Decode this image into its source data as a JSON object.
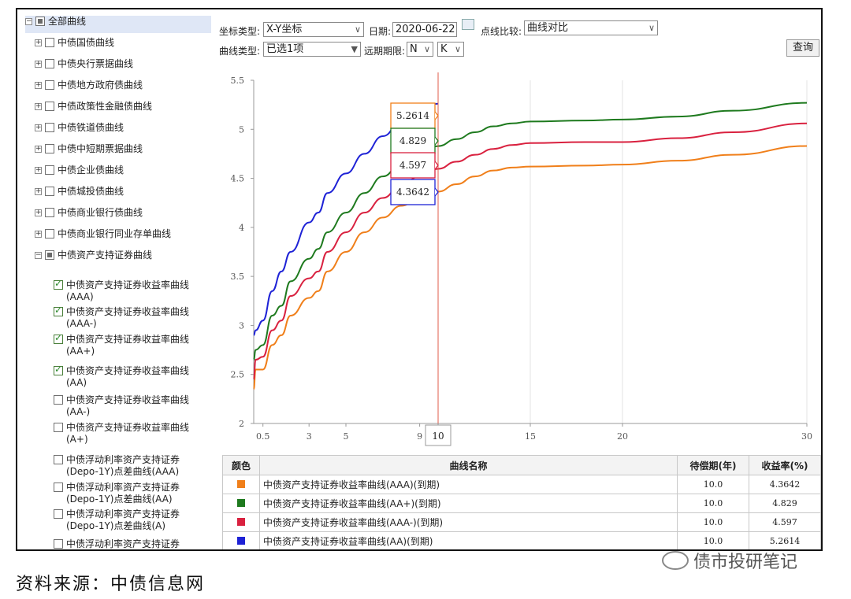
{
  "tree": {
    "root": "全部曲线",
    "groups": [
      "中债国债曲线",
      "中债央行票据曲线",
      "中债地方政府债曲线",
      "中债政策性金融债曲线",
      "中债铁道债曲线",
      "中债中短期票据曲线",
      "中债企业债曲线",
      "中债城投债曲线",
      "中债商业银行债曲线",
      "中债商业银行同业存单曲线",
      "中债资产支持证券曲线"
    ],
    "leaves": [
      {
        "label": "中债资产支持证券收益率曲线(AAA)",
        "checked": true
      },
      {
        "label": "中债资产支持证券收益率曲线(AAA-)",
        "checked": true
      },
      {
        "label": "中债资产支持证券收益率曲线(AA+)",
        "checked": true
      },
      {
        "label": "中债资产支持证券收益率曲线(AA)",
        "checked": true
      },
      {
        "label": "中债资产支持证券收益率曲线(AA-)",
        "checked": false
      },
      {
        "label": "中债资产支持证券收益率曲线(A+)",
        "checked": false
      },
      {
        "label": "中债浮动利率资产支持证券(Depo-1Y)点差曲线(AAA)",
        "checked": false
      },
      {
        "label": "中债浮动利率资产支持证券(Depo-1Y)点差曲线(AA)",
        "checked": false
      },
      {
        "label": "中债浮动利率资产支持证券(Depo-1Y)点差曲线(A)",
        "checked": false
      },
      {
        "label": "中债浮动利率资产支持证券",
        "checked": false
      }
    ]
  },
  "controls": {
    "coord_label": "坐标类型:",
    "coord_value": "X-Y坐标",
    "date_label": "日期:",
    "date_value": "2020-06-22",
    "compare_label": "点线比较:",
    "compare_value": "曲线对比",
    "curve_type_label": "曲线类型:",
    "curve_type_value": "已选1项",
    "far_label": "远期期限:",
    "far_n": "N",
    "far_k": "K",
    "query_button": "查询"
  },
  "chart_data": {
    "type": "line",
    "x_ticks": [
      "0.5",
      "3",
      "5",
      "9",
      "10",
      "15",
      "20",
      "30"
    ],
    "y_ticks": [
      "2",
      "2.5",
      "3",
      "3.5",
      "4",
      "4.5",
      "5",
      "5.5"
    ],
    "ylim": [
      2,
      5.5
    ],
    "crosshair_x": 10,
    "series": [
      {
        "name": "中债资产支持证券收益率曲线(AAA)(到期)",
        "color": "#f07f1a",
        "points": [
          [
            0,
            2.35
          ],
          [
            0.1,
            2.55
          ],
          [
            0.5,
            2.55
          ],
          [
            1,
            2.8
          ],
          [
            1.5,
            2.9
          ],
          [
            2,
            3.1
          ],
          [
            3,
            3.28
          ],
          [
            3.5,
            3.35
          ],
          [
            4,
            3.55
          ],
          [
            5,
            3.75
          ],
          [
            6,
            3.95
          ],
          [
            7,
            4.1
          ],
          [
            8,
            4.22
          ],
          [
            9,
            4.3
          ],
          [
            10,
            4.3642
          ],
          [
            11,
            4.44
          ],
          [
            12,
            4.52
          ],
          [
            13,
            4.58
          ],
          [
            14,
            4.61
          ],
          [
            15,
            4.62
          ],
          [
            18,
            4.63
          ],
          [
            20,
            4.64
          ],
          [
            23,
            4.68
          ],
          [
            26,
            4.74
          ],
          [
            30,
            4.83
          ]
        ]
      },
      {
        "name": "中债资产支持证券收益率曲线(AA+)(到期)",
        "color": "#1e7a1e",
        "points": [
          [
            0,
            2.65
          ],
          [
            0.1,
            2.75
          ],
          [
            0.5,
            2.8
          ],
          [
            1,
            3.1
          ],
          [
            1.5,
            3.2
          ],
          [
            2,
            3.45
          ],
          [
            3,
            3.68
          ],
          [
            3.5,
            3.78
          ],
          [
            4,
            3.95
          ],
          [
            5,
            4.15
          ],
          [
            6,
            4.35
          ],
          [
            7,
            4.52
          ],
          [
            8,
            4.65
          ],
          [
            9,
            4.76
          ],
          [
            10,
            4.829
          ],
          [
            11,
            4.9
          ],
          [
            12,
            4.97
          ],
          [
            13,
            5.03
          ],
          [
            14,
            5.06
          ],
          [
            15,
            5.08
          ],
          [
            18,
            5.09
          ],
          [
            20,
            5.1
          ],
          [
            23,
            5.13
          ],
          [
            26,
            5.19
          ],
          [
            30,
            5.27
          ]
        ]
      },
      {
        "name": "中债资产支持证券收益率曲线(AAA-)(到期)",
        "color": "#d9213f",
        "points": [
          [
            0,
            2.45
          ],
          [
            0.1,
            2.65
          ],
          [
            0.5,
            2.68
          ],
          [
            1,
            2.95
          ],
          [
            1.5,
            3.05
          ],
          [
            2,
            3.3
          ],
          [
            3,
            3.48
          ],
          [
            3.5,
            3.55
          ],
          [
            4,
            3.75
          ],
          [
            5,
            3.95
          ],
          [
            6,
            4.15
          ],
          [
            7,
            4.3
          ],
          [
            8,
            4.43
          ],
          [
            9,
            4.52
          ],
          [
            10,
            4.597
          ],
          [
            11,
            4.67
          ],
          [
            12,
            4.74
          ],
          [
            13,
            4.8
          ],
          [
            14,
            4.84
          ],
          [
            15,
            4.86
          ],
          [
            18,
            4.87
          ],
          [
            20,
            4.87
          ],
          [
            23,
            4.91
          ],
          [
            26,
            4.97
          ],
          [
            30,
            5.06
          ]
        ]
      },
      {
        "name": "中债资产支持证券收益率曲线(AA)(到期)",
        "color": "#1e22d6",
        "points": [
          [
            0,
            2.9
          ],
          [
            0.1,
            2.95
          ],
          [
            0.5,
            3.05
          ],
          [
            1,
            3.35
          ],
          [
            1.5,
            3.55
          ],
          [
            2,
            3.75
          ],
          [
            3,
            4.05
          ],
          [
            3.5,
            4.15
          ],
          [
            4,
            4.35
          ],
          [
            5,
            4.55
          ],
          [
            6,
            4.75
          ],
          [
            7,
            4.93
          ],
          [
            8,
            5.08
          ],
          [
            9,
            5.2
          ],
          [
            10,
            5.2614
          ]
        ]
      }
    ],
    "callouts": [
      "5.2614",
      "4.829",
      "4.597",
      "4.3642"
    ],
    "crosshair_label": "10"
  },
  "table": {
    "headers": [
      "颜色",
      "曲线名称",
      "待偿期(年)",
      "收益率(%)"
    ],
    "rows": [
      {
        "color": "#f07f1a",
        "name": "中债资产支持证券收益率曲线(AAA)(到期)",
        "term": "10.0",
        "yield": "4.3642"
      },
      {
        "color": "#1e7a1e",
        "name": "中债资产支持证券收益率曲线(AA+)(到期)",
        "term": "10.0",
        "yield": "4.829"
      },
      {
        "color": "#d9213f",
        "name": "中债资产支持证券收益率曲线(AAA-)(到期)",
        "term": "10.0",
        "yield": "4.597"
      },
      {
        "color": "#1e22d6",
        "name": "中债资产支持证券收益率曲线(AA)(到期)",
        "term": "10.0",
        "yield": "5.2614"
      }
    ]
  },
  "footer": {
    "source": "资料来源：中债信息网",
    "watermark": "债市投研笔记"
  }
}
